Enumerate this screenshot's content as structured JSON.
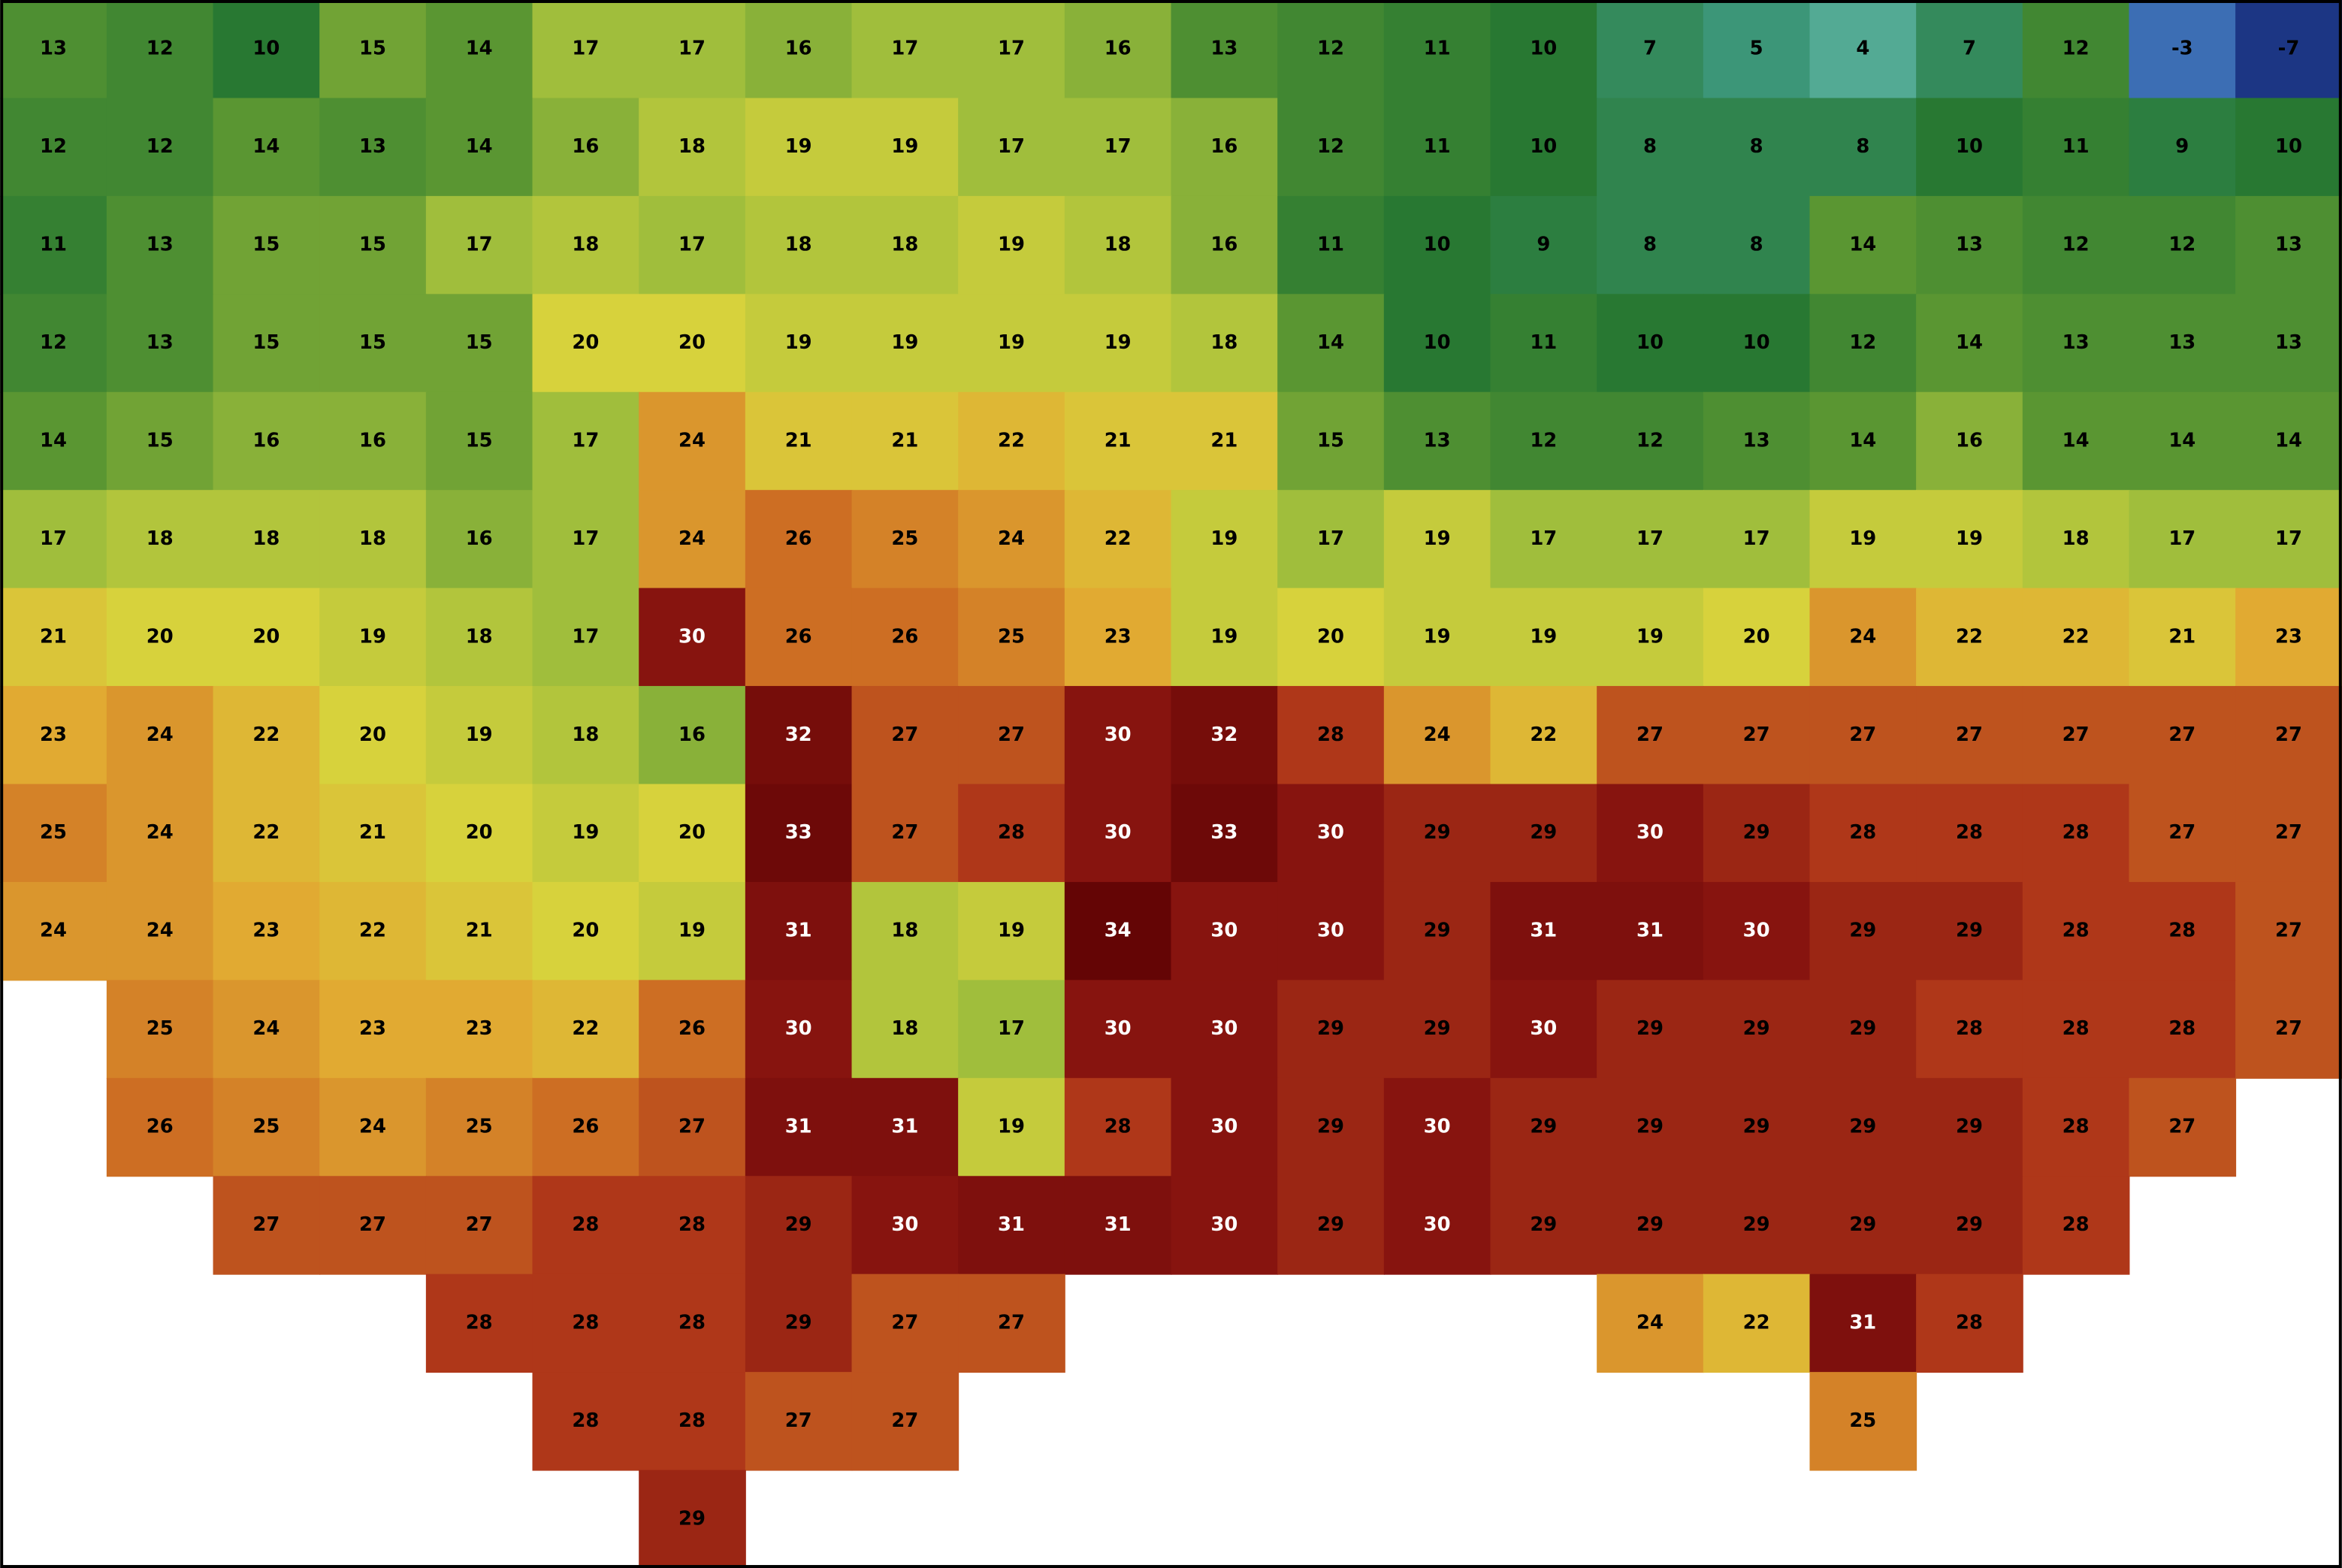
{
  "map": {
    "temperature_grid": [
      [
        13,
        12,
        10,
        15,
        14,
        17,
        17,
        16,
        17,
        17,
        16,
        13,
        12,
        11,
        10,
        7,
        5,
        4,
        7,
        12,
        -3,
        -7
      ],
      [
        12,
        12,
        14,
        13,
        14,
        16,
        18,
        19,
        19,
        17,
        17,
        16,
        12,
        11,
        10,
        8,
        8,
        8,
        10,
        11,
        9,
        10
      ],
      [
        11,
        13,
        15,
        15,
        17,
        18,
        17,
        18,
        18,
        19,
        18,
        16,
        11,
        10,
        9,
        8,
        8,
        14,
        13,
        12,
        12,
        13
      ],
      [
        12,
        13,
        15,
        15,
        15,
        20,
        20,
        19,
        19,
        19,
        19,
        18,
        14,
        10,
        11,
        10,
        10,
        12,
        14,
        13,
        13,
        13
      ],
      [
        14,
        15,
        16,
        16,
        15,
        17,
        24,
        21,
        21,
        22,
        21,
        21,
        15,
        13,
        12,
        12,
        13,
        14,
        16,
        14,
        14,
        14
      ],
      [
        17,
        18,
        18,
        18,
        16,
        17,
        24,
        26,
        25,
        24,
        22,
        19,
        17,
        19,
        17,
        17,
        17,
        19,
        19,
        18,
        17,
        17
      ],
      [
        21,
        20,
        20,
        19,
        18,
        17,
        30,
        26,
        26,
        25,
        23,
        19,
        20,
        19,
        19,
        19,
        20,
        24,
        22,
        22,
        21,
        23
      ],
      [
        23,
        24,
        22,
        20,
        19,
        18,
        16,
        32,
        27,
        27,
        30,
        32,
        28,
        24,
        22,
        27,
        27,
        27,
        27,
        27,
        27,
        27
      ],
      [
        25,
        24,
        22,
        21,
        20,
        19,
        20,
        33,
        27,
        28,
        30,
        33,
        30,
        29,
        29,
        30,
        29,
        28,
        28,
        28,
        27,
        27
      ],
      [
        24,
        24,
        23,
        22,
        21,
        20,
        19,
        31,
        18,
        19,
        34,
        30,
        30,
        29,
        31,
        31,
        30,
        29,
        29,
        28,
        28,
        27
      ],
      [
        null,
        25,
        24,
        23,
        23,
        22,
        26,
        30,
        18,
        17,
        30,
        30,
        29,
        29,
        30,
        29,
        29,
        29,
        28,
        28,
        28,
        27
      ],
      [
        null,
        26,
        25,
        24,
        25,
        26,
        27,
        31,
        31,
        19,
        28,
        30,
        29,
        30,
        29,
        29,
        29,
        29,
        29,
        28,
        27,
        null
      ],
      [
        null,
        null,
        27,
        27,
        27,
        28,
        28,
        29,
        30,
        31,
        31,
        30,
        29,
        30,
        29,
        29,
        29,
        29,
        29,
        28,
        null,
        null
      ],
      [
        null,
        null,
        null,
        null,
        28,
        28,
        28,
        29,
        27,
        27,
        null,
        null,
        null,
        null,
        null,
        24,
        22,
        31,
        28,
        null,
        null,
        null
      ],
      [
        null,
        null,
        null,
        null,
        null,
        28,
        28,
        27,
        27,
        null,
        null,
        null,
        null,
        null,
        null,
        null,
        null,
        25,
        null,
        null,
        null,
        null
      ],
      [
        null,
        null,
        null,
        null,
        null,
        null,
        29,
        null,
        null,
        null,
        null,
        null,
        null,
        null,
        null,
        null,
        null,
        null,
        null,
        null,
        null,
        null
      ]
    ]
  }
}
